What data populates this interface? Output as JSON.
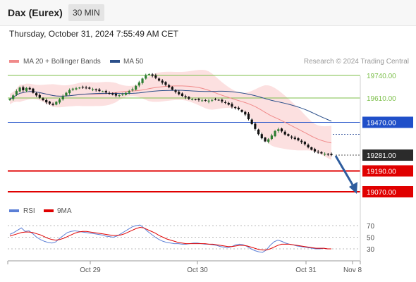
{
  "header": {
    "instrument": "Dax (Eurex)",
    "timeframe": "30 MIN"
  },
  "timestamp": "Thursday, October 31, 2024 7:55:49 AM CET",
  "legend": {
    "bollinger": "MA 20 + Bollinger Bands",
    "ma50": "MA 50",
    "credit": "Research © 2024 Trading Central"
  },
  "rsi_legend": {
    "rsi": "RSI",
    "ma9": "9MA"
  },
  "colors": {
    "bull": "#2e7d32",
    "bear": "#111111",
    "ma20": "#f08a8a",
    "band": "#fbd6d6",
    "ma50": "#2b4f8a",
    "resistance": "#7cbf4a",
    "pivot": "#1f4fc9",
    "support": "#e00000",
    "current": "#222222",
    "arrow": "#2e5c9e",
    "rsi": "#5b7fd6",
    "rsi_ma": "#e00000"
  },
  "chart_data": {
    "type": "candlestick",
    "x_ticks": [
      "Oct 29",
      "Oct 30",
      "Oct 31",
      "Nov 8"
    ],
    "levels": [
      {
        "label": "19740.00",
        "value": 19740,
        "kind": "resistance"
      },
      {
        "label": "19610.00",
        "value": 19610,
        "kind": "resistance"
      },
      {
        "label": "19470.00",
        "value": 19470,
        "kind": "pivot"
      },
      {
        "label": "19281.00",
        "value": 19281,
        "kind": "current"
      },
      {
        "label": "19190.00",
        "value": 19190,
        "kind": "support"
      },
      {
        "label": "19070.00",
        "value": 19070,
        "kind": "support"
      }
    ],
    "closes": [
      19604,
      19625,
      19650,
      19670,
      19655,
      19668,
      19660,
      19640,
      19625,
      19612,
      19598,
      19585,
      19578,
      19570,
      19588,
      19602,
      19620,
      19640,
      19656,
      19664,
      19666,
      19670,
      19672,
      19668,
      19664,
      19660,
      19655,
      19650,
      19648,
      19642,
      19636,
      19630,
      19624,
      19626,
      19632,
      19640,
      19650,
      19660,
      19680,
      19700,
      19722,
      19742,
      19748,
      19738,
      19726,
      19710,
      19698,
      19686,
      19672,
      19658,
      19645,
      19632,
      19622,
      19614,
      19606,
      19602,
      19600,
      19598,
      19596,
      19594,
      19595,
      19599,
      19602,
      19598,
      19590,
      19582,
      19572,
      19560,
      19552,
      19545,
      19530,
      19515,
      19488,
      19460,
      19432,
      19402,
      19378,
      19360,
      19372,
      19394,
      19420,
      19430,
      19418,
      19400,
      19392,
      19382,
      19374,
      19366,
      19356,
      19344,
      19326,
      19312,
      19302,
      19296,
      19291,
      19288,
      19284,
      19281
    ],
    "rsi": {
      "ticks": [
        70,
        50,
        30
      ],
      "range": [
        10,
        90
      ],
      "values": [
        55,
        58,
        62,
        66,
        60,
        61,
        56,
        50,
        46,
        43,
        41,
        40,
        42,
        48,
        53,
        58,
        60,
        61,
        60,
        59,
        58,
        57,
        56,
        55,
        54,
        52,
        51,
        50,
        52,
        56,
        60,
        64,
        68,
        70,
        71,
        66,
        60,
        55,
        50,
        46,
        43,
        41,
        40,
        39,
        39,
        38,
        38,
        39,
        40,
        40,
        39,
        38,
        38,
        37,
        36,
        34,
        33,
        32,
        34,
        37,
        38,
        37,
        34,
        30,
        27,
        25,
        24,
        28,
        36,
        42,
        45,
        43,
        40,
        38,
        37,
        35,
        34,
        33,
        32,
        31,
        30,
        30,
        31,
        30,
        30
      ],
      "ma": [
        52,
        54,
        56,
        58,
        59,
        59,
        58,
        56,
        54,
        51,
        48,
        46,
        45,
        46,
        48,
        51,
        54,
        57,
        59,
        60,
        60,
        59,
        58,
        57,
        56,
        55,
        54,
        53,
        53,
        54,
        56,
        59,
        62,
        65,
        67,
        66,
        63,
        60,
        57,
        53,
        50,
        47,
        45,
        43,
        41,
        40,
        39,
        39,
        39,
        39,
        39,
        39,
        38,
        38,
        37,
        36,
        35,
        34,
        34,
        35,
        36,
        36,
        35,
        33,
        31,
        29,
        28,
        28,
        30,
        33,
        36,
        38,
        38,
        38,
        37,
        36,
        35,
        34,
        33,
        32,
        31,
        31,
        31,
        30,
        30
      ]
    }
  }
}
